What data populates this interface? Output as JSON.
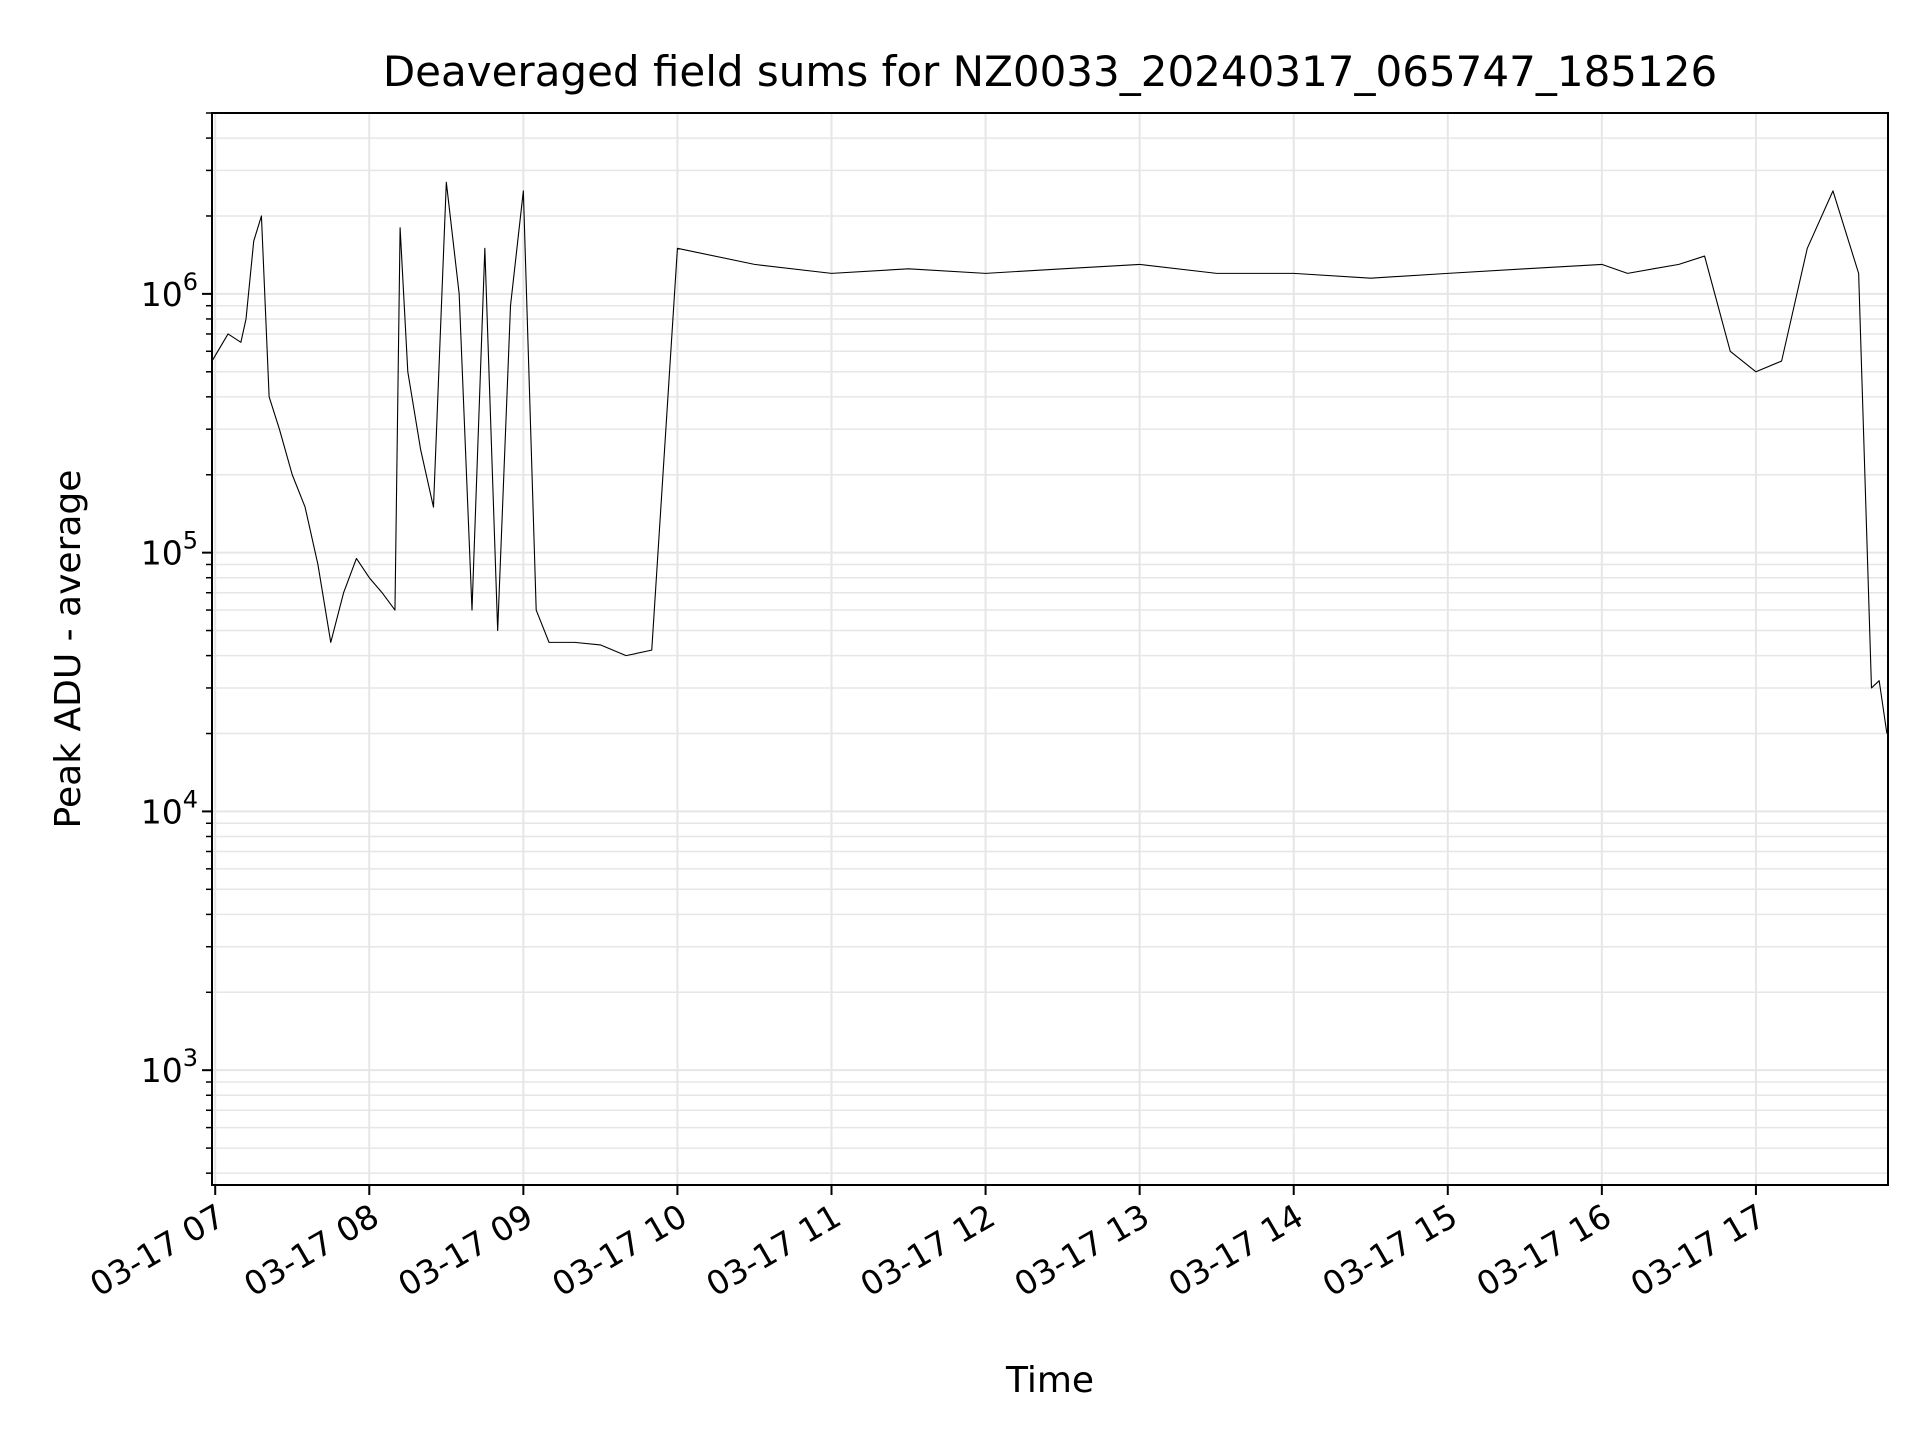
{
  "chart_data": {
    "type": "line",
    "title": "Deaveraged field sums for NZ0033_20240317_065747_185126",
    "xlabel": "Time",
    "ylabel": "Peak ADU - average",
    "yscale": "log",
    "ylim": [
      360,
      5000000
    ],
    "xlim": [
      "2024-03-17T06:58:45",
      "2024-03-17T17:51:26"
    ],
    "x_ticks": [
      {
        "label": "03-17 07",
        "value": "2024-03-17T07:00:00"
      },
      {
        "label": "03-17 08",
        "value": "2024-03-17T08:00:00"
      },
      {
        "label": "03-17 09",
        "value": "2024-03-17T09:00:00"
      },
      {
        "label": "03-17 10",
        "value": "2024-03-17T10:00:00"
      },
      {
        "label": "03-17 11",
        "value": "2024-03-17T11:00:00"
      },
      {
        "label": "03-17 12",
        "value": "2024-03-17T12:00:00"
      },
      {
        "label": "03-17 13",
        "value": "2024-03-17T13:00:00"
      },
      {
        "label": "03-17 14",
        "value": "2024-03-17T14:00:00"
      },
      {
        "label": "03-17 15",
        "value": "2024-03-17T15:00:00"
      },
      {
        "label": "03-17 16",
        "value": "2024-03-17T16:00:00"
      },
      {
        "label": "03-17 17",
        "value": "2024-03-17T17:00:00"
      }
    ],
    "y_ticks": [
      {
        "base": "10",
        "exp": "3",
        "value": 1000
      },
      {
        "base": "10",
        "exp": "4",
        "value": 10000
      },
      {
        "base": "10",
        "exp": "5",
        "value": 100000
      },
      {
        "base": "10",
        "exp": "6",
        "value": 1000000
      }
    ],
    "grid": true,
    "line_color": "#000000",
    "series": [
      {
        "x": [
          "2024-03-17T06:58:45",
          "2024-03-17T07:05:00",
          "2024-03-17T07:10:00",
          "2024-03-17T07:12:00",
          "2024-03-17T07:15:00",
          "2024-03-17T07:18:00",
          "2024-03-17T07:21:00",
          "2024-03-17T07:25:00",
          "2024-03-17T07:30:00",
          "2024-03-17T07:35:00",
          "2024-03-17T07:40:00",
          "2024-03-17T07:45:00",
          "2024-03-17T07:50:00",
          "2024-03-17T07:55:00",
          "2024-03-17T08:00:00",
          "2024-03-17T08:05:00",
          "2024-03-17T08:10:00",
          "2024-03-17T08:12:00",
          "2024-03-17T08:15:00",
          "2024-03-17T08:20:00",
          "2024-03-17T08:25:00",
          "2024-03-17T08:30:00",
          "2024-03-17T08:35:00",
          "2024-03-17T08:40:00",
          "2024-03-17T08:45:00",
          "2024-03-17T08:50:00",
          "2024-03-17T08:55:00",
          "2024-03-17T09:00:00",
          "2024-03-17T09:05:00",
          "2024-03-17T09:10:00",
          "2024-03-17T09:20:00",
          "2024-03-17T09:30:00",
          "2024-03-17T09:40:00",
          "2024-03-17T09:50:00",
          "2024-03-17T10:00:00",
          "2024-03-17T10:30:00",
          "2024-03-17T11:00:00",
          "2024-03-17T11:30:00",
          "2024-03-17T12:00:00",
          "2024-03-17T12:30:00",
          "2024-03-17T13:00:00",
          "2024-03-17T13:30:00",
          "2024-03-17T14:00:00",
          "2024-03-17T14:30:00",
          "2024-03-17T15:00:00",
          "2024-03-17T15:30:00",
          "2024-03-17T16:00:00",
          "2024-03-17T16:10:00",
          "2024-03-17T16:20:00",
          "2024-03-17T16:30:00",
          "2024-03-17T16:40:00",
          "2024-03-17T16:50:00",
          "2024-03-17T17:00:00",
          "2024-03-17T17:10:00",
          "2024-03-17T17:20:00",
          "2024-03-17T17:30:00",
          "2024-03-17T17:40:00",
          "2024-03-17T17:45:00",
          "2024-03-17T17:48:00",
          "2024-03-17T17:51:00"
        ],
        "y": [
          550000,
          700000,
          650000,
          800000,
          1600000,
          2000000,
          400000,
          300000,
          200000,
          150000,
          90000,
          45000,
          70000,
          95000,
          80000,
          70000,
          60000,
          1800000,
          500000,
          250000,
          150000,
          2700000,
          1000000,
          60000,
          1500000,
          50000,
          900000,
          2500000,
          60000,
          45000,
          45000,
          44000,
          40000,
          42000,
          1500000,
          1300000,
          1200000,
          1250000,
          1200000,
          1250000,
          1300000,
          1200000,
          1200000,
          1150000,
          1200000,
          1250000,
          1300000,
          1200000,
          1250000,
          1300000,
          1400000,
          600000,
          500000,
          550000,
          1500000,
          2500000,
          1200000,
          30000,
          32000,
          20000
        ]
      }
    ]
  }
}
